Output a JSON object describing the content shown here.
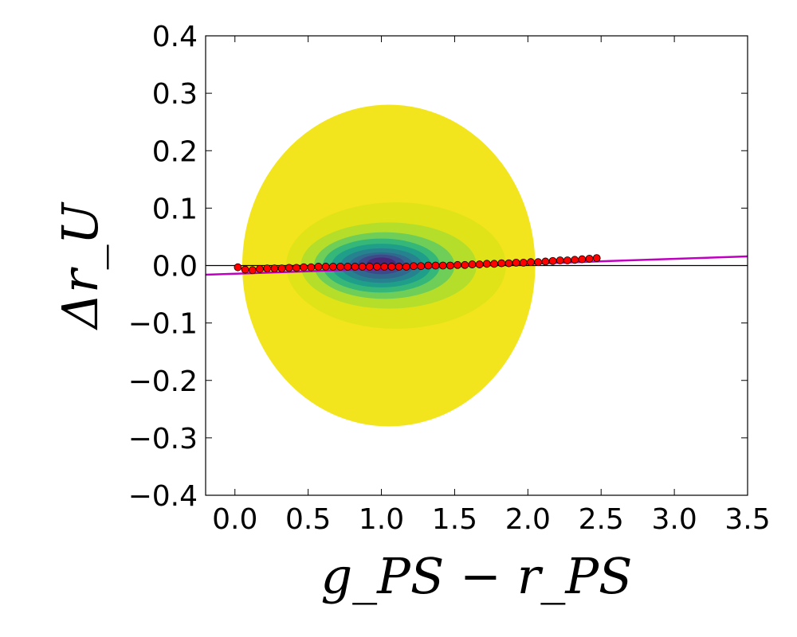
{
  "chart_data": {
    "type": "scatter",
    "title": "",
    "xlabel": "g_PS − r_PS",
    "ylabel": "Δr_U",
    "xlim": [
      -0.2,
      3.5
    ],
    "ylim": [
      -0.4,
      0.4
    ],
    "xticks": [
      0.0,
      0.5,
      1.0,
      1.5,
      2.0,
      2.5,
      3.0,
      3.5
    ],
    "yticks": [
      -0.4,
      -0.3,
      -0.2,
      -0.1,
      0.0,
      0.1,
      0.2,
      0.3,
      0.4
    ],
    "xtick_labels": [
      "0.0",
      "0.5",
      "1.0",
      "1.5",
      "2.0",
      "2.5",
      "3.0",
      "3.5"
    ],
    "ytick_labels": [
      "−0.4",
      "−0.3",
      "−0.2",
      "−0.1",
      "0.0",
      "0.1",
      "0.2",
      "0.3",
      "0.4"
    ],
    "grid": false,
    "density_contours": {
      "colormap": "viridis",
      "levels": [
        {
          "color": "#f2e51d",
          "cx": 1.05,
          "cy": 0.0,
          "rx": 1.0,
          "ry": 0.28
        },
        {
          "color": "#dfe318",
          "cx": 1.1,
          "cy": 0.0,
          "rx": 0.75,
          "ry": 0.11
        },
        {
          "color": "#b5de2b",
          "cx": 1.05,
          "cy": 0.0,
          "rx": 0.6,
          "ry": 0.075
        },
        {
          "color": "#6ece58",
          "cx": 1.02,
          "cy": 0.0,
          "rx": 0.48,
          "ry": 0.058
        },
        {
          "color": "#35b779",
          "cx": 1.0,
          "cy": 0.0,
          "rx": 0.4,
          "ry": 0.047
        },
        {
          "color": "#1f9e89",
          "cx": 1.0,
          "cy": 0.0,
          "rx": 0.34,
          "ry": 0.038
        },
        {
          "color": "#26828e",
          "cx": 1.0,
          "cy": 0.0,
          "rx": 0.28,
          "ry": 0.03
        },
        {
          "color": "#31688e",
          "cx": 1.0,
          "cy": 0.0,
          "rx": 0.22,
          "ry": 0.023
        },
        {
          "color": "#3e4989",
          "cx": 1.0,
          "cy": 0.002,
          "rx": 0.16,
          "ry": 0.017
        },
        {
          "color": "#482878",
          "cx": 1.0,
          "cy": 0.003,
          "rx": 0.1,
          "ry": 0.011
        }
      ]
    },
    "series": [
      {
        "kind": "binned_medians",
        "color": "#ff0000",
        "x": [
          0.02,
          0.07,
          0.12,
          0.17,
          0.22,
          0.27,
          0.32,
          0.37,
          0.42,
          0.47,
          0.52,
          0.57,
          0.62,
          0.67,
          0.72,
          0.77,
          0.82,
          0.87,
          0.92,
          0.97,
          1.02,
          1.07,
          1.12,
          1.17,
          1.22,
          1.27,
          1.32,
          1.37,
          1.42,
          1.47,
          1.52,
          1.57,
          1.62,
          1.67,
          1.72,
          1.77,
          1.82,
          1.87,
          1.92,
          1.97,
          2.02,
          2.07,
          2.12,
          2.17,
          2.22,
          2.27,
          2.32,
          2.37,
          2.42,
          2.47
        ],
        "y": [
          -0.003,
          -0.007,
          -0.008,
          -0.006,
          -0.005,
          -0.005,
          -0.005,
          -0.004,
          -0.004,
          -0.003,
          -0.003,
          -0.002,
          -0.002,
          -0.002,
          -0.002,
          -0.002,
          -0.002,
          -0.002,
          -0.002,
          -0.002,
          -0.002,
          -0.002,
          -0.002,
          -0.002,
          -0.001,
          -0.001,
          0.0,
          0.0,
          0.0,
          0.0,
          0.001,
          0.001,
          0.002,
          0.002,
          0.003,
          0.003,
          0.004,
          0.004,
          0.005,
          0.005,
          0.006,
          0.006,
          0.007,
          0.008,
          0.009,
          0.009,
          0.01,
          0.011,
          0.012,
          0.013
        ]
      },
      {
        "kind": "fit_line",
        "color": "#c000c0",
        "x": [
          -0.2,
          3.5
        ],
        "y": [
          -0.016,
          0.016
        ]
      },
      {
        "kind": "reference_line",
        "color": "#000000",
        "x": [
          -0.2,
          3.5
        ],
        "y": [
          0.0,
          0.0
        ]
      }
    ]
  }
}
